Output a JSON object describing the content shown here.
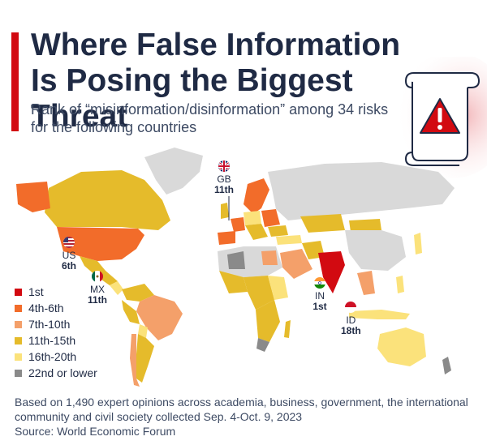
{
  "header": {
    "title": "Where False Information Is Posing the Biggest Threat",
    "subtitle": "Rank of “misinformation/disinformation” among 34 risks for the following countries"
  },
  "colors": {
    "accent": "#d20a11",
    "title": "#1f2a44",
    "no_data": "#d9d9d9"
  },
  "legend": [
    {
      "label": "1st",
      "color": "#d20a11"
    },
    {
      "label": "4th-6th",
      "color": "#f26c2a"
    },
    {
      "label": "7th-10th",
      "color": "#f4a06a"
    },
    {
      "label": "11th-15th",
      "color": "#e5bb2b"
    },
    {
      "label": "16th-20th",
      "color": "#fbe27b"
    },
    {
      "label": "22nd or lower",
      "color": "#8a8a8a"
    }
  ],
  "callouts": [
    {
      "code": "GB",
      "rank": "11th",
      "flag": "uk-flag-icon"
    },
    {
      "code": "US",
      "rank": "6th",
      "flag": "us-flag-icon"
    },
    {
      "code": "MX",
      "rank": "11th",
      "flag": "mexico-flag-icon"
    },
    {
      "code": "IN",
      "rank": "1st",
      "flag": "india-flag-icon"
    },
    {
      "code": "ID",
      "rank": "18th",
      "flag": "indonesia-flag-icon"
    }
  ],
  "footer": {
    "note": "Based on 1,490 expert opinions across academia, business, government, the international community and civil society collected Sep. 4-Oct. 9, 2023",
    "source": "Source: World Economic Forum"
  }
}
